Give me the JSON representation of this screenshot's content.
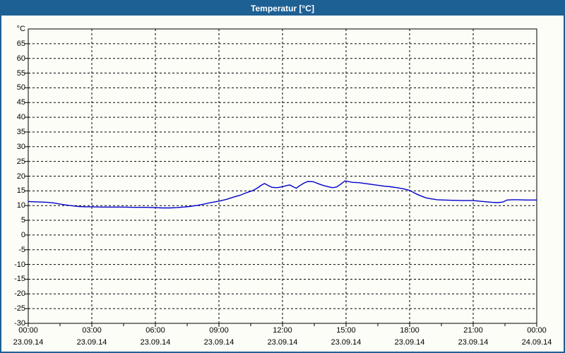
{
  "window": {
    "title": "Temperatur [°C]"
  },
  "colors": {
    "titlebar_bg": "#1d6094",
    "titlebar_text": "#ffffff",
    "window_border": "#1d6094",
    "window_bg": "#fcfdf7",
    "grid_axis": "#000000",
    "label_text": "#000000",
    "series_line": "#0000cc"
  },
  "chart_data": {
    "type": "line",
    "title": "Temperatur [°C]",
    "xlabel": "",
    "ylabel": "°C",
    "ylim": [
      -30,
      70
    ],
    "yticks": [
      65,
      60,
      55,
      50,
      45,
      40,
      35,
      30,
      25,
      20,
      15,
      10,
      5,
      0,
      -5,
      -10,
      -15,
      -20,
      -25,
      -30
    ],
    "xlim_hours": [
      0,
      24
    ],
    "xtick_hours": [
      0,
      3,
      6,
      9,
      12,
      15,
      18,
      21,
      24
    ],
    "xtick_time_labels": [
      "00:00",
      "03:00",
      "06:00",
      "09:00",
      "12:00",
      "15:00",
      "18:00",
      "21:00",
      "00:00"
    ],
    "xtick_date_labels": [
      "23.09.14",
      "23.09.14",
      "23.09.14",
      "23.09.14",
      "23.09.14",
      "23.09.14",
      "23.09.14",
      "23.09.14",
      "24.09.14"
    ],
    "minor_xtick_hours": [
      1.5,
      4.5,
      7.5,
      10.5,
      13.5,
      16.5,
      19.5,
      22.5
    ],
    "grid": "dashed",
    "legend": "none",
    "series": [
      {
        "name": "Temperatur",
        "color": "#0000cc",
        "points": [
          [
            0,
            11.4
          ],
          [
            0.3,
            11.3
          ],
          [
            0.6,
            11.2
          ],
          [
            0.9,
            11.1
          ],
          [
            1.2,
            10.9
          ],
          [
            1.5,
            10.5
          ],
          [
            1.8,
            10.2
          ],
          [
            2.1,
            9.9
          ],
          [
            2.4,
            9.7
          ],
          [
            2.7,
            9.6
          ],
          [
            3,
            9.6
          ],
          [
            3.5,
            9.5
          ],
          [
            4,
            9.5
          ],
          [
            4.5,
            9.5
          ],
          [
            5,
            9.4
          ],
          [
            5.5,
            9.4
          ],
          [
            6,
            9.3
          ],
          [
            6.3,
            9.2
          ],
          [
            6.7,
            9.2
          ],
          [
            7,
            9.3
          ],
          [
            7.3,
            9.5
          ],
          [
            7.6,
            9.7
          ],
          [
            8,
            10.1
          ],
          [
            8.3,
            10.5
          ],
          [
            8.6,
            11
          ],
          [
            9,
            11.5
          ],
          [
            9.35,
            12.1
          ],
          [
            9.7,
            12.9
          ],
          [
            10,
            13.5
          ],
          [
            10.3,
            14.4
          ],
          [
            10.6,
            15.1
          ],
          [
            10.8,
            15.9
          ],
          [
            11,
            16.9
          ],
          [
            11.15,
            17.5
          ],
          [
            11.3,
            16.9
          ],
          [
            11.5,
            16.2
          ],
          [
            11.75,
            16.1
          ],
          [
            12,
            16.4
          ],
          [
            12.2,
            16.8
          ],
          [
            12.35,
            17
          ],
          [
            12.5,
            16.4
          ],
          [
            12.65,
            15.9
          ],
          [
            12.8,
            16.7
          ],
          [
            13,
            17.6
          ],
          [
            13.2,
            18.2
          ],
          [
            13.45,
            18.1
          ],
          [
            13.7,
            17.4
          ],
          [
            13.9,
            16.9
          ],
          [
            14.1,
            16.5
          ],
          [
            14.35,
            16.1
          ],
          [
            14.55,
            16.3
          ],
          [
            14.75,
            17.3
          ],
          [
            14.95,
            18.4
          ],
          [
            15.1,
            18.2
          ],
          [
            15.3,
            17.9
          ],
          [
            15.6,
            17.8
          ],
          [
            15.9,
            17.5
          ],
          [
            16.2,
            17.2
          ],
          [
            16.5,
            16.9
          ],
          [
            16.8,
            16.6
          ],
          [
            17.1,
            16.4
          ],
          [
            17.4,
            16.1
          ],
          [
            17.7,
            15.7
          ],
          [
            18,
            15.2
          ],
          [
            18.2,
            14.4
          ],
          [
            18.4,
            13.7
          ],
          [
            18.6,
            13.1
          ],
          [
            18.8,
            12.6
          ],
          [
            19,
            12.3
          ],
          [
            19.3,
            12
          ],
          [
            19.6,
            11.9
          ],
          [
            20,
            11.8
          ],
          [
            20.5,
            11.7
          ],
          [
            21,
            11.7
          ],
          [
            21.3,
            11.5
          ],
          [
            21.6,
            11.3
          ],
          [
            21.9,
            11.1
          ],
          [
            22.15,
            11
          ],
          [
            22.4,
            11.2
          ],
          [
            22.6,
            11.9
          ],
          [
            22.85,
            12
          ],
          [
            23.1,
            12
          ],
          [
            23.5,
            11.9
          ],
          [
            24,
            11.9
          ]
        ]
      }
    ]
  }
}
